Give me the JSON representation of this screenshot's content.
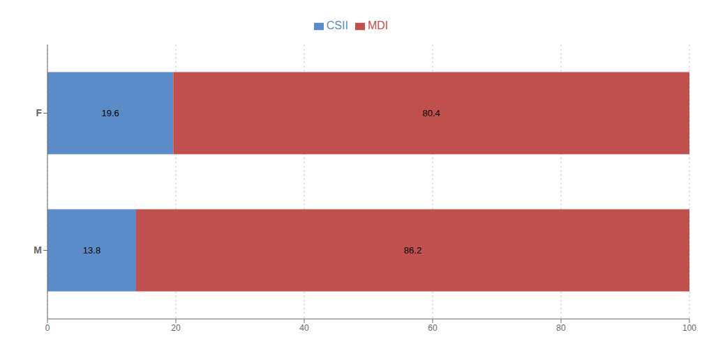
{
  "chart_data": {
    "type": "bar",
    "orientation": "horizontal",
    "stacked": true,
    "categories": [
      "F",
      "M"
    ],
    "series": [
      {
        "name": "CSII",
        "color": "#5B8CC8",
        "values": [
          19.6,
          13.8
        ]
      },
      {
        "name": "MDI",
        "color": "#C0504D",
        "values": [
          80.4,
          86.2
        ]
      }
    ],
    "xlim": [
      0,
      100
    ],
    "xticks": [
      0,
      20,
      40,
      60,
      80,
      100
    ],
    "grid": true,
    "legend": "top",
    "data_labels": true
  }
}
